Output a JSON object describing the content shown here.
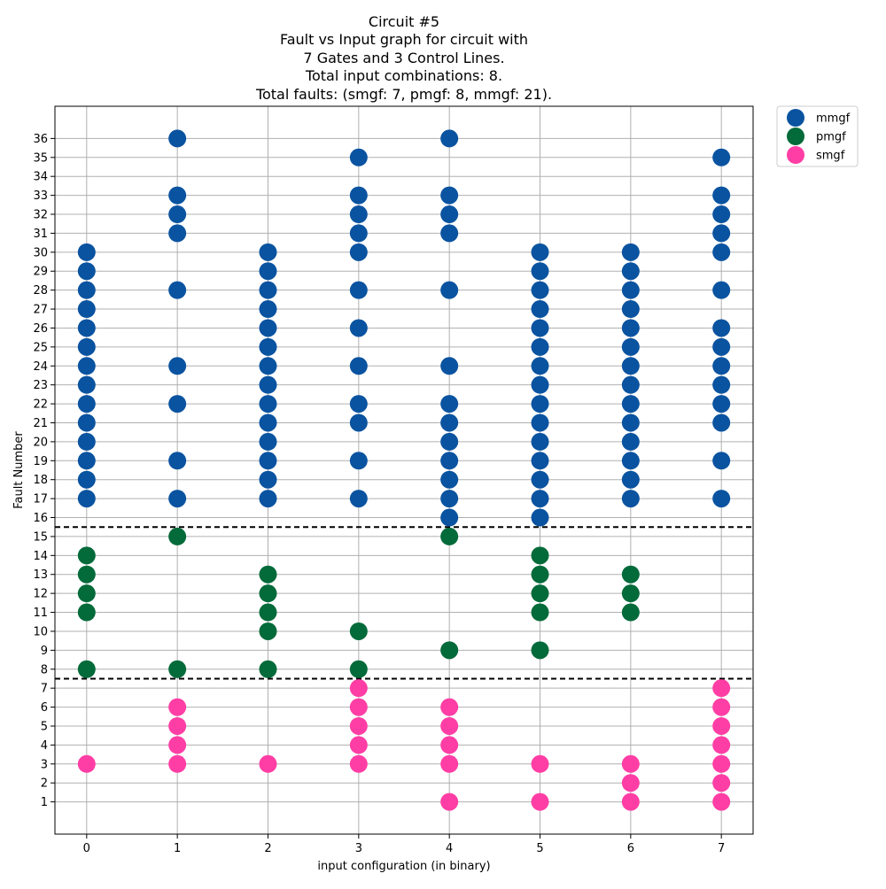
{
  "chart_data": {
    "type": "scatter",
    "title_lines": [
      "Circuit #5",
      "Fault vs Input graph for circuit with",
      "7 Gates and 3 Control Lines.",
      "Total input combinations: 8.",
      "Total faults: (smgf: 7, pmgf: 8, mmgf: 21)."
    ],
    "xlabel": "input configuration (in binary)",
    "ylabel": "Fault Number",
    "xticks": [
      0,
      1,
      2,
      3,
      4,
      5,
      6,
      7
    ],
    "yticks": [
      1,
      2,
      3,
      4,
      5,
      6,
      7,
      8,
      9,
      10,
      11,
      12,
      13,
      14,
      15,
      16,
      17,
      18,
      19,
      20,
      21,
      22,
      23,
      24,
      25,
      26,
      27,
      28,
      29,
      30,
      31,
      32,
      33,
      34,
      35,
      36
    ],
    "xlim": [
      -0.35,
      7.35
    ],
    "ylim": [
      -0.7,
      37.7
    ],
    "grid": true,
    "legend_position": "outside top-right",
    "reference_lines": [
      {
        "axis": "y",
        "value": 15.5,
        "style": "dashed",
        "color": "#000000"
      },
      {
        "axis": "y",
        "value": 7.5,
        "style": "dashed",
        "color": "#000000"
      }
    ],
    "series": [
      {
        "name": "mmgf",
        "color": "#0a53a0",
        "points": [
          [
            0,
            17
          ],
          [
            0,
            18
          ],
          [
            0,
            19
          ],
          [
            0,
            20
          ],
          [
            0,
            21
          ],
          [
            0,
            22
          ],
          [
            0,
            23
          ],
          [
            0,
            24
          ],
          [
            0,
            25
          ],
          [
            0,
            26
          ],
          [
            0,
            27
          ],
          [
            0,
            28
          ],
          [
            0,
            29
          ],
          [
            0,
            30
          ],
          [
            1,
            17
          ],
          [
            1,
            19
          ],
          [
            1,
            22
          ],
          [
            1,
            24
          ],
          [
            1,
            28
          ],
          [
            1,
            31
          ],
          [
            1,
            32
          ],
          [
            1,
            33
          ],
          [
            1,
            36
          ],
          [
            2,
            17
          ],
          [
            2,
            18
          ],
          [
            2,
            19
          ],
          [
            2,
            20
          ],
          [
            2,
            21
          ],
          [
            2,
            22
          ],
          [
            2,
            23
          ],
          [
            2,
            24
          ],
          [
            2,
            25
          ],
          [
            2,
            26
          ],
          [
            2,
            27
          ],
          [
            2,
            28
          ],
          [
            2,
            29
          ],
          [
            2,
            30
          ],
          [
            3,
            17
          ],
          [
            3,
            19
          ],
          [
            3,
            21
          ],
          [
            3,
            22
          ],
          [
            3,
            24
          ],
          [
            3,
            26
          ],
          [
            3,
            28
          ],
          [
            3,
            30
          ],
          [
            3,
            31
          ],
          [
            3,
            32
          ],
          [
            3,
            33
          ],
          [
            3,
            35
          ],
          [
            4,
            16
          ],
          [
            4,
            17
          ],
          [
            4,
            18
          ],
          [
            4,
            19
          ],
          [
            4,
            20
          ],
          [
            4,
            21
          ],
          [
            4,
            22
          ],
          [
            4,
            24
          ],
          [
            4,
            28
          ],
          [
            4,
            31
          ],
          [
            4,
            32
          ],
          [
            4,
            33
          ],
          [
            4,
            36
          ],
          [
            5,
            16
          ],
          [
            5,
            17
          ],
          [
            5,
            18
          ],
          [
            5,
            19
          ],
          [
            5,
            20
          ],
          [
            5,
            21
          ],
          [
            5,
            22
          ],
          [
            5,
            23
          ],
          [
            5,
            24
          ],
          [
            5,
            25
          ],
          [
            5,
            26
          ],
          [
            5,
            27
          ],
          [
            5,
            28
          ],
          [
            5,
            29
          ],
          [
            5,
            30
          ],
          [
            6,
            17
          ],
          [
            6,
            18
          ],
          [
            6,
            19
          ],
          [
            6,
            20
          ],
          [
            6,
            21
          ],
          [
            6,
            22
          ],
          [
            6,
            23
          ],
          [
            6,
            24
          ],
          [
            6,
            25
          ],
          [
            6,
            26
          ],
          [
            6,
            27
          ],
          [
            6,
            28
          ],
          [
            6,
            29
          ],
          [
            6,
            30
          ],
          [
            7,
            17
          ],
          [
            7,
            19
          ],
          [
            7,
            21
          ],
          [
            7,
            22
          ],
          [
            7,
            23
          ],
          [
            7,
            24
          ],
          [
            7,
            25
          ],
          [
            7,
            26
          ],
          [
            7,
            28
          ],
          [
            7,
            30
          ],
          [
            7,
            31
          ],
          [
            7,
            32
          ],
          [
            7,
            33
          ],
          [
            7,
            35
          ]
        ]
      },
      {
        "name": "pmgf",
        "color": "#036a3a",
        "points": [
          [
            0,
            8
          ],
          [
            0,
            11
          ],
          [
            0,
            12
          ],
          [
            0,
            13
          ],
          [
            0,
            14
          ],
          [
            1,
            8
          ],
          [
            1,
            15
          ],
          [
            2,
            8
          ],
          [
            2,
            10
          ],
          [
            2,
            11
          ],
          [
            2,
            12
          ],
          [
            2,
            13
          ],
          [
            3,
            8
          ],
          [
            3,
            10
          ],
          [
            4,
            9
          ],
          [
            4,
            15
          ],
          [
            5,
            9
          ],
          [
            5,
            11
          ],
          [
            5,
            12
          ],
          [
            5,
            13
          ],
          [
            5,
            14
          ],
          [
            6,
            11
          ],
          [
            6,
            12
          ],
          [
            6,
            13
          ]
        ]
      },
      {
        "name": "smgf",
        "color": "#ff3ea5",
        "points": [
          [
            0,
            3
          ],
          [
            1,
            3
          ],
          [
            1,
            4
          ],
          [
            1,
            5
          ],
          [
            1,
            6
          ],
          [
            2,
            3
          ],
          [
            3,
            3
          ],
          [
            3,
            4
          ],
          [
            3,
            5
          ],
          [
            3,
            6
          ],
          [
            3,
            7
          ],
          [
            4,
            1
          ],
          [
            4,
            3
          ],
          [
            4,
            4
          ],
          [
            4,
            5
          ],
          [
            4,
            6
          ],
          [
            5,
            1
          ],
          [
            5,
            3
          ],
          [
            6,
            1
          ],
          [
            6,
            2
          ],
          [
            6,
            3
          ],
          [
            7,
            1
          ],
          [
            7,
            2
          ],
          [
            7,
            3
          ],
          [
            7,
            4
          ],
          [
            7,
            5
          ],
          [
            7,
            6
          ],
          [
            7,
            7
          ]
        ]
      }
    ]
  }
}
